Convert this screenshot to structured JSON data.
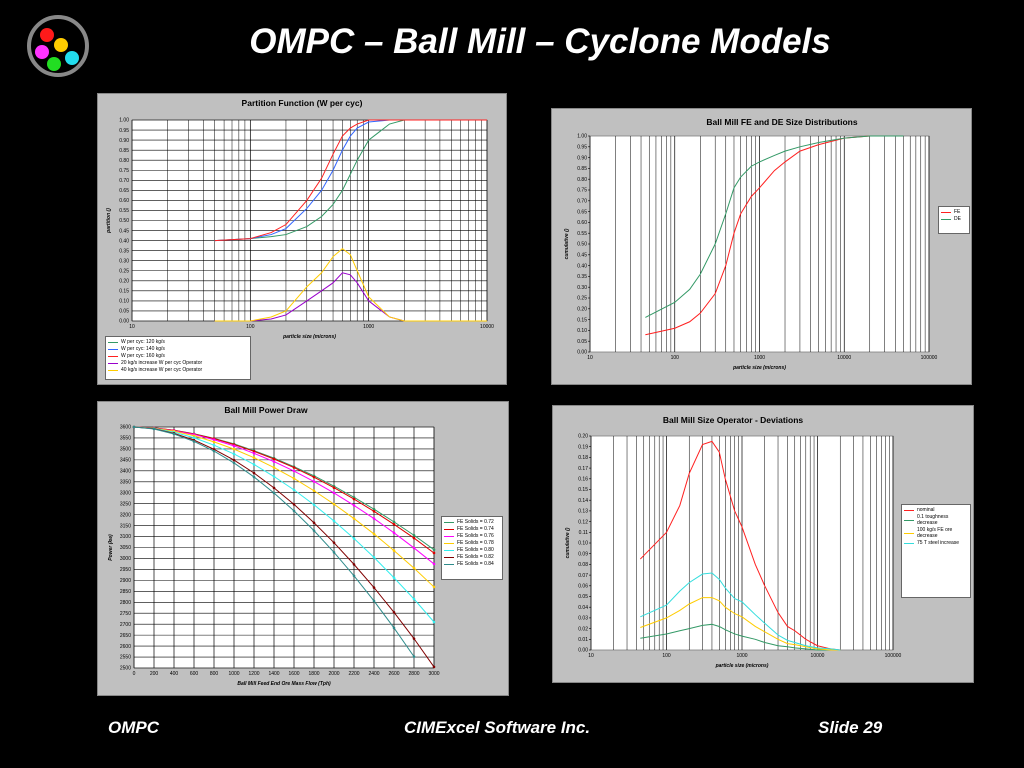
{
  "slide": {
    "title": "OMPC – Ball Mill – Cyclone Models",
    "footer_left": "OMPC",
    "footer_center": "CIMExcel Software Inc.",
    "footer_right": "Slide 29"
  },
  "chart_data": [
    {
      "type": "line",
      "title": "Partition Function (W per cyc)",
      "xlabel": "particle size (microns)",
      "ylabel": "partition ()",
      "xlog": true,
      "xgrid": true,
      "ygrid": true,
      "minor_grid": true,
      "legend": "bottom-left",
      "markers": false,
      "xlim": [
        10,
        10000
      ],
      "xticks": [
        10,
        100,
        1000,
        10000
      ],
      "ylim": [
        0,
        1
      ],
      "yticks": [
        {
          "value": 0,
          "label": "0.00"
        },
        {
          "value": 0.05,
          "label": "0.05"
        },
        {
          "value": 0.1,
          "label": "0.10"
        },
        {
          "value": 0.15,
          "label": "0.15"
        },
        {
          "value": 0.2,
          "label": "0.20"
        },
        {
          "value": 0.25,
          "label": "0.25"
        },
        {
          "value": 0.3,
          "label": "0.30"
        },
        {
          "value": 0.35,
          "label": "0.35"
        },
        {
          "value": 0.4,
          "label": "0.40"
        },
        {
          "value": 0.45,
          "label": "0.45"
        },
        {
          "value": 0.5,
          "label": "0.50"
        },
        {
          "value": 0.55,
          "label": "0.55"
        },
        {
          "value": 0.6,
          "label": "0.60"
        },
        {
          "value": 0.65,
          "label": "0.65"
        },
        {
          "value": 0.7,
          "label": "0.70"
        },
        {
          "value": 0.75,
          "label": "0.75"
        },
        {
          "value": 0.8,
          "label": "0.80"
        },
        {
          "value": 0.85,
          "label": "0.85"
        },
        {
          "value": 0.9,
          "label": "0.90"
        },
        {
          "value": 0.95,
          "label": "0.95"
        },
        {
          "value": 1,
          "label": "1.00"
        }
      ],
      "x": [
        50,
        100,
        150,
        200,
        300,
        400,
        500,
        600,
        700,
        800,
        1000,
        1500,
        2000,
        3000,
        5000,
        10000
      ],
      "series": [
        {
          "name": "W per cyc: 120 kg/s",
          "color": "#339966",
          "values": [
            0.4,
            0.41,
            0.42,
            0.43,
            0.47,
            0.52,
            0.58,
            0.65,
            0.73,
            0.8,
            0.9,
            0.98,
            1.0,
            1.0,
            1.0,
            1.0
          ]
        },
        {
          "name": "W per cyc: 140 kg/s",
          "color": "#3366ff",
          "values": [
            0.4,
            0.41,
            0.43,
            0.46,
            0.56,
            0.65,
            0.75,
            0.85,
            0.92,
            0.96,
            0.99,
            1.0,
            1.0,
            1.0,
            1.0,
            1.0
          ]
        },
        {
          "name": "W per cyc: 160 kg/s",
          "color": "#ff2020",
          "values": [
            0.4,
            0.41,
            0.44,
            0.48,
            0.6,
            0.71,
            0.83,
            0.92,
            0.96,
            0.98,
            1.0,
            1.0,
            1.0,
            1.0,
            1.0,
            1.0
          ]
        },
        {
          "name": "20 kg/s increase W per cyc Operator",
          "color": "#9900cc",
          "values": [
            0,
            0,
            0.01,
            0.03,
            0.1,
            0.15,
            0.19,
            0.24,
            0.23,
            0.19,
            0.1,
            0.02,
            0,
            0,
            0,
            0
          ]
        },
        {
          "name": "40 kg/s increase W per cyc Operator",
          "color": "#ffcc00",
          "values": [
            0,
            0,
            0.02,
            0.05,
            0.17,
            0.24,
            0.32,
            0.36,
            0.33,
            0.25,
            0.12,
            0.02,
            0,
            0,
            0,
            0
          ]
        }
      ]
    },
    {
      "type": "line",
      "title": "Ball Mill FE and DE Size Distributions",
      "xlabel": "particle size  (microns)",
      "ylabel": "cumulative ()",
      "xlog": true,
      "xgrid": true,
      "ygrid": false,
      "minor_grid": true,
      "legend": "right",
      "markers": false,
      "xlim": [
        10,
        100000
      ],
      "xticks": [
        10,
        100,
        1000,
        10000,
        100000
      ],
      "ylim": [
        0,
        1
      ],
      "yticks": [
        {
          "value": 0,
          "label": "0.00"
        },
        {
          "value": 0.05,
          "label": "0.05"
        },
        {
          "value": 0.1,
          "label": "0.10"
        },
        {
          "value": 0.15,
          "label": "0.15"
        },
        {
          "value": 0.2,
          "label": "0.20"
        },
        {
          "value": 0.25,
          "label": "0.25"
        },
        {
          "value": 0.3,
          "label": "0.30"
        },
        {
          "value": 0.35,
          "label": "0.35"
        },
        {
          "value": 0.4,
          "label": "0.40"
        },
        {
          "value": 0.45,
          "label": "0.45"
        },
        {
          "value": 0.5,
          "label": "0.50"
        },
        {
          "value": 0.55,
          "label": "0.55"
        },
        {
          "value": 0.6,
          "label": "0.60"
        },
        {
          "value": 0.65,
          "label": "0.65"
        },
        {
          "value": 0.7,
          "label": "0.70"
        },
        {
          "value": 0.75,
          "label": "0.75"
        },
        {
          "value": 0.8,
          "label": "0.80"
        },
        {
          "value": 0.85,
          "label": "0.85"
        },
        {
          "value": 0.9,
          "label": "0.90"
        },
        {
          "value": 0.95,
          "label": "0.95"
        },
        {
          "value": 1,
          "label": "1.00"
        }
      ],
      "x": [
        45,
        100,
        150,
        200,
        300,
        400,
        500,
        600,
        800,
        1000,
        1500,
        2000,
        3000,
        5000,
        10000,
        20000,
        50000
      ],
      "series": [
        {
          "name": "FE",
          "color": "#ff2020",
          "values": [
            0.08,
            0.11,
            0.14,
            0.18,
            0.27,
            0.4,
            0.55,
            0.64,
            0.72,
            0.76,
            0.84,
            0.88,
            0.93,
            0.96,
            0.99,
            1.0,
            1.0
          ]
        },
        {
          "name": "DE",
          "color": "#339966",
          "values": [
            0.16,
            0.23,
            0.29,
            0.36,
            0.5,
            0.64,
            0.76,
            0.81,
            0.86,
            0.88,
            0.91,
            0.93,
            0.95,
            0.97,
            0.99,
            1.0,
            1.0
          ]
        }
      ]
    },
    {
      "type": "line",
      "title": "Ball Mill Power Draw",
      "xlabel": "Ball Mill  Feed End Ore Mass Flow (Tph)",
      "ylabel": "Power (kw)",
      "xlog": false,
      "xgrid": true,
      "ygrid": true,
      "minor_grid": false,
      "legend": "right",
      "markers": true,
      "xlim": [
        0,
        3000
      ],
      "xticks": [
        0,
        200,
        400,
        600,
        800,
        1000,
        1200,
        1400,
        1600,
        1800,
        2000,
        2200,
        2400,
        2600,
        2800,
        3000
      ],
      "ylim": [
        2500,
        3600
      ],
      "yticks": [
        2500,
        2550,
        2600,
        2650,
        2700,
        2750,
        2800,
        2850,
        2900,
        2950,
        3000,
        3050,
        3100,
        3150,
        3200,
        3250,
        3300,
        3350,
        3400,
        3450,
        3500,
        3550,
        3600
      ],
      "x": [
        0,
        200,
        400,
        600,
        800,
        1000,
        1200,
        1400,
        1600,
        1800,
        2000,
        2200,
        2400,
        2600,
        2800,
        3000
      ],
      "series": [
        {
          "name": "FE Solids = 0.72",
          "color": "#339966",
          "values": [
            3600,
            3596,
            3585,
            3569,
            3548,
            3523,
            3492,
            3458,
            3419,
            3377,
            3330,
            3279,
            3225,
            3167,
            3106,
            3040
          ]
        },
        {
          "name": "FE Solids = 0.74",
          "color": "#dd0000",
          "values": [
            3600,
            3596,
            3585,
            3568,
            3547,
            3520,
            3489,
            3454,
            3415,
            3371,
            3323,
            3271,
            3215,
            3156,
            3093,
            3025
          ]
        },
        {
          "name": "FE Solids = 0.76",
          "color": "#ff00ff",
          "values": [
            3600,
            3595,
            3583,
            3566,
            3542,
            3514,
            3480,
            3442,
            3399,
            3351,
            3299,
            3242,
            3182,
            3117,
            3048,
            2975
          ]
        },
        {
          "name": "FE Solids = 0.78",
          "color": "#ffcc00",
          "values": [
            3600,
            3594,
            3581,
            3560,
            3532,
            3499,
            3460,
            3415,
            3365,
            3309,
            3248,
            3182,
            3112,
            3036,
            2956,
            2870
          ]
        },
        {
          "name": "FE Solids = 0.80",
          "color": "#33eeee",
          "values": [
            3600,
            3593,
            3576,
            3551,
            3517,
            3477,
            3429,
            3374,
            3313,
            3245,
            3171,
            3091,
            3005,
            2912,
            2815,
            2710
          ]
        },
        {
          "name": "FE Solids = 0.82",
          "color": "#800000",
          "values": [
            3600,
            3592,
            3571,
            3540,
            3498,
            3449,
            3390,
            3322,
            3247,
            3163,
            3072,
            2973,
            2867,
            2754,
            2634,
            2505
          ]
        },
        {
          "name": "FE Solids = 0.84",
          "color": "#2e8b8b",
          "values": [
            3600,
            3591,
            3568,
            3534,
            3490,
            3436,
            3372,
            3299,
            3217,
            3127,
            3028,
            2921,
            2806,
            2683,
            2552,
            null
          ]
        }
      ]
    },
    {
      "type": "line",
      "title": "Ball Mill Size Operator - Deviations",
      "xlabel": "particle size (microns)",
      "ylabel": "cumulative ()",
      "xlog": true,
      "xgrid": true,
      "ygrid": false,
      "minor_grid": true,
      "legend": "right",
      "markers": false,
      "xlim": [
        10,
        100000
      ],
      "xticks": [
        10,
        100,
        1000,
        10000,
        100000
      ],
      "ylim": [
        0,
        0.2
      ],
      "yticks": [
        {
          "value": 0,
          "label": "0.00"
        },
        {
          "value": 0.01,
          "label": "0.01"
        },
        {
          "value": 0.02,
          "label": "0.02"
        },
        {
          "value": 0.03,
          "label": "0.03"
        },
        {
          "value": 0.04,
          "label": "0.04"
        },
        {
          "value": 0.05,
          "label": "0.05"
        },
        {
          "value": 0.06,
          "label": "0.06"
        },
        {
          "value": 0.07,
          "label": "0.07"
        },
        {
          "value": 0.08,
          "label": "0.08"
        },
        {
          "value": 0.09,
          "label": "0.09"
        },
        {
          "value": 0.1,
          "label": "0.10"
        },
        {
          "value": 0.11,
          "label": "0.11"
        },
        {
          "value": 0.12,
          "label": "0.12"
        },
        {
          "value": 0.13,
          "label": "0.13"
        },
        {
          "value": 0.14,
          "label": "0.14"
        },
        {
          "value": 0.15,
          "label": "0.15"
        },
        {
          "value": 0.16,
          "label": "0.16"
        },
        {
          "value": 0.17,
          "label": "0.17"
        },
        {
          "value": 0.18,
          "label": "0.18"
        },
        {
          "value": 0.19,
          "label": "0.19"
        },
        {
          "value": 0.2,
          "label": "0.20"
        }
      ],
      "x": [
        45,
        100,
        150,
        200,
        300,
        400,
        500,
        600,
        800,
        1000,
        1500,
        2000,
        3000,
        4000,
        5000,
        7000,
        10000,
        15000,
        20000
      ],
      "series": [
        {
          "name": "nominal",
          "color": "#ff2020",
          "values": [
            0.085,
            0.11,
            0.135,
            0.165,
            0.192,
            0.195,
            0.185,
            0.16,
            0.13,
            0.115,
            0.08,
            0.06,
            0.035,
            0.022,
            0.018,
            0.01,
            0.004,
            0.001,
            0
          ]
        },
        {
          "name": "0.1 toughness decrease",
          "color": "#339966",
          "values": [
            0.011,
            0.015,
            0.018,
            0.02,
            0.023,
            0.024,
            0.022,
            0.019,
            0.015,
            0.013,
            0.01,
            0.007,
            0.004,
            0.003,
            0.002,
            0.001,
            0,
            0,
            0
          ]
        },
        {
          "name": "100 kg/s FE ore decrease",
          "color": "#ffcc00",
          "values": [
            0.021,
            0.03,
            0.037,
            0.043,
            0.049,
            0.049,
            0.046,
            0.04,
            0.034,
            0.031,
            0.022,
            0.017,
            0.01,
            0.006,
            0.005,
            0.003,
            0.001,
            0,
            0
          ]
        },
        {
          "name": "75 T steel increase",
          "color": "#33dddd",
          "values": [
            0.031,
            0.042,
            0.055,
            0.063,
            0.071,
            0.072,
            0.066,
            0.058,
            0.048,
            0.045,
            0.033,
            0.025,
            0.014,
            0.009,
            0.007,
            0.004,
            0.002,
            0.001,
            0
          ]
        }
      ]
    }
  ]
}
